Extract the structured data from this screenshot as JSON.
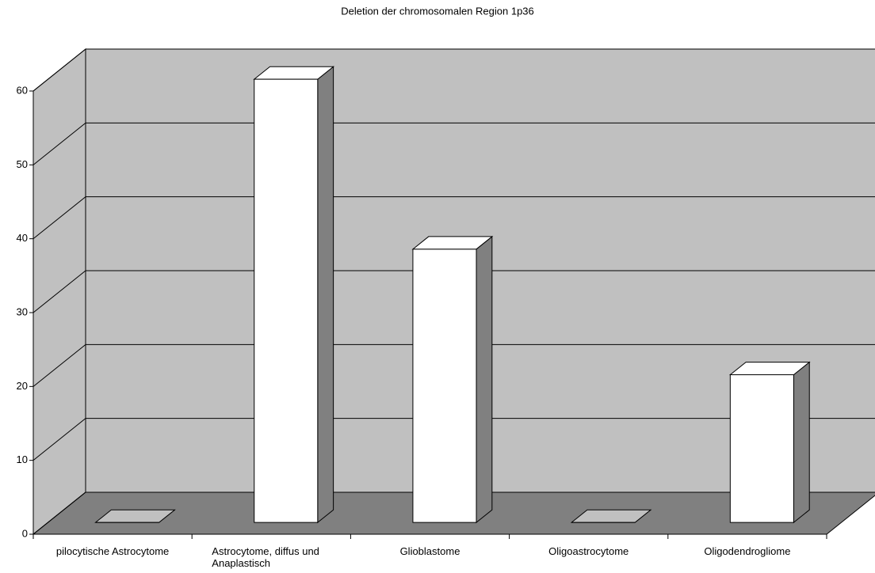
{
  "chart_data": {
    "type": "bar3d",
    "title": "Deletion der chromosomalen Region  1p36",
    "categories": [
      "pilocytische Astrocytome",
      "Astrocytome, diffus und Anaplastisch",
      "Glioblastome",
      "Oligoastrocytome",
      "Oligodendrogliome"
    ],
    "values": [
      0,
      60,
      37,
      0,
      20
    ],
    "color": "#ffffff",
    "side_color": "#808080",
    "wall_color": "#c0c0c0",
    "floor_color": "#808080",
    "ylim": [
      0,
      60
    ],
    "yticks": [
      0,
      10,
      20,
      30,
      40,
      50,
      60
    ],
    "grid": true
  }
}
